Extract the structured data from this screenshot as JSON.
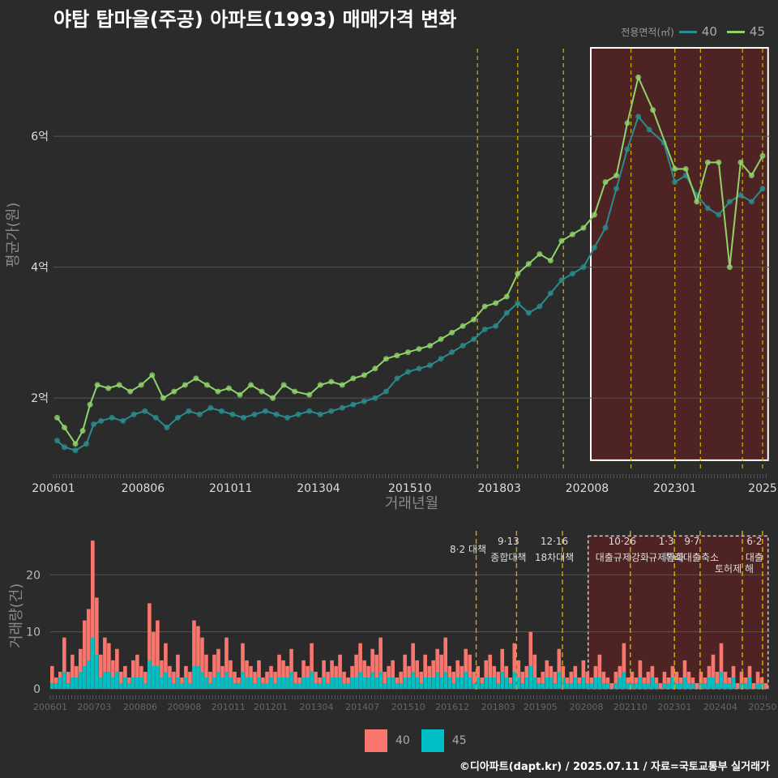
{
  "title": "야탑 탑마을(주공) 아파트(1993) 매매가격 변화",
  "footer": "©디아파트(dapt.kr) / 2025.07.11 / 자료=국토교통부 실거래가",
  "colors": {
    "s40_line": "#2a8c8f",
    "s45_line": "#8ed46a",
    "bar40": "#f8766d",
    "bar45": "#00bfc4",
    "policy": "#d4b400",
    "policy_orange": "#e0a000",
    "highlight": "#5a2222"
  },
  "chart_data": [
    {
      "type": "line",
      "title": "야탑 탑마을(주공) 아파트(1993) 매매가격 변화",
      "xlabel": "거래년월",
      "ylabel": "평균가(원)",
      "legend_title": "전용면적(㎡)",
      "legend_position": "top-right",
      "x_ticks": [
        "200601",
        "200806",
        "201011",
        "201304",
        "201510",
        "201803",
        "202008",
        "202301",
        "2025"
      ],
      "y_ticks": [
        {
          "value": 2,
          "label": "2억"
        },
        {
          "value": 4,
          "label": "4억"
        },
        {
          "value": 6,
          "label": "6억"
        }
      ],
      "ylim": [
        0.9,
        7.4
      ],
      "xlim": [
        2006.0,
        2025.6
      ],
      "highlight_range": [
        2020.7,
        2025.55
      ],
      "policy_lines": [
        2017.6,
        2018.7,
        2019.95,
        2021.8,
        2023.0,
        2023.7,
        2024.85,
        2025.4
      ],
      "series": [
        {
          "name": "40",
          "points": [
            [
              2006.1,
              1.35
            ],
            [
              2006.3,
              1.25
            ],
            [
              2006.6,
              1.2
            ],
            [
              2006.9,
              1.3
            ],
            [
              2007.1,
              1.6
            ],
            [
              2007.3,
              1.65
            ],
            [
              2007.6,
              1.7
            ],
            [
              2007.9,
              1.65
            ],
            [
              2008.2,
              1.75
            ],
            [
              2008.5,
              1.8
            ],
            [
              2008.8,
              1.7
            ],
            [
              2009.1,
              1.55
            ],
            [
              2009.4,
              1.7
            ],
            [
              2009.7,
              1.8
            ],
            [
              2010.0,
              1.75
            ],
            [
              2010.3,
              1.85
            ],
            [
              2010.6,
              1.8
            ],
            [
              2010.9,
              1.75
            ],
            [
              2011.2,
              1.7
            ],
            [
              2011.5,
              1.75
            ],
            [
              2011.8,
              1.8
            ],
            [
              2012.1,
              1.75
            ],
            [
              2012.4,
              1.7
            ],
            [
              2012.7,
              1.75
            ],
            [
              2013.0,
              1.8
            ],
            [
              2013.3,
              1.75
            ],
            [
              2013.6,
              1.8
            ],
            [
              2013.9,
              1.85
            ],
            [
              2014.2,
              1.9
            ],
            [
              2014.5,
              1.95
            ],
            [
              2014.8,
              2.0
            ],
            [
              2015.1,
              2.1
            ],
            [
              2015.4,
              2.3
            ],
            [
              2015.7,
              2.4
            ],
            [
              2016.0,
              2.45
            ],
            [
              2016.3,
              2.5
            ],
            [
              2016.6,
              2.6
            ],
            [
              2016.9,
              2.7
            ],
            [
              2017.2,
              2.8
            ],
            [
              2017.5,
              2.9
            ],
            [
              2017.8,
              3.05
            ],
            [
              2018.1,
              3.1
            ],
            [
              2018.4,
              3.3
            ],
            [
              2018.7,
              3.45
            ],
            [
              2019.0,
              3.3
            ],
            [
              2019.3,
              3.4
            ],
            [
              2019.6,
              3.6
            ],
            [
              2019.9,
              3.8
            ],
            [
              2020.2,
              3.9
            ],
            [
              2020.5,
              4.0
            ],
            [
              2020.8,
              4.3
            ],
            [
              2021.1,
              4.6
            ],
            [
              2021.4,
              5.2
            ],
            [
              2021.7,
              5.8
            ],
            [
              2022.0,
              6.3
            ],
            [
              2022.3,
              6.1
            ],
            [
              2022.7,
              5.9
            ],
            [
              2023.0,
              5.3
            ],
            [
              2023.3,
              5.4
            ],
            [
              2023.6,
              5.1
            ],
            [
              2023.9,
              4.9
            ],
            [
              2024.2,
              4.8
            ],
            [
              2024.5,
              5.0
            ],
            [
              2024.8,
              5.1
            ],
            [
              2025.1,
              5.0
            ],
            [
              2025.4,
              5.2
            ]
          ]
        },
        {
          "name": "45",
          "points": [
            [
              2006.1,
              1.7
            ],
            [
              2006.3,
              1.55
            ],
            [
              2006.6,
              1.3
            ],
            [
              2006.8,
              1.5
            ],
            [
              2007.0,
              1.9
            ],
            [
              2007.2,
              2.2
            ],
            [
              2007.5,
              2.15
            ],
            [
              2007.8,
              2.2
            ],
            [
              2008.1,
              2.1
            ],
            [
              2008.4,
              2.2
            ],
            [
              2008.7,
              2.35
            ],
            [
              2009.0,
              2.0
            ],
            [
              2009.3,
              2.1
            ],
            [
              2009.6,
              2.2
            ],
            [
              2009.9,
              2.3
            ],
            [
              2010.2,
              2.2
            ],
            [
              2010.5,
              2.1
            ],
            [
              2010.8,
              2.15
            ],
            [
              2011.1,
              2.05
            ],
            [
              2011.4,
              2.2
            ],
            [
              2011.7,
              2.1
            ],
            [
              2012.0,
              2.0
            ],
            [
              2012.3,
              2.2
            ],
            [
              2012.6,
              2.1
            ],
            [
              2013.0,
              2.05
            ],
            [
              2013.3,
              2.2
            ],
            [
              2013.6,
              2.25
            ],
            [
              2013.9,
              2.2
            ],
            [
              2014.2,
              2.3
            ],
            [
              2014.5,
              2.35
            ],
            [
              2014.8,
              2.45
            ],
            [
              2015.1,
              2.6
            ],
            [
              2015.4,
              2.65
            ],
            [
              2015.7,
              2.7
            ],
            [
              2016.0,
              2.75
            ],
            [
              2016.3,
              2.8
            ],
            [
              2016.6,
              2.9
            ],
            [
              2016.9,
              3.0
            ],
            [
              2017.2,
              3.1
            ],
            [
              2017.5,
              3.2
            ],
            [
              2017.8,
              3.4
            ],
            [
              2018.1,
              3.45
            ],
            [
              2018.4,
              3.55
            ],
            [
              2018.7,
              3.9
            ],
            [
              2019.0,
              4.05
            ],
            [
              2019.3,
              4.2
            ],
            [
              2019.6,
              4.1
            ],
            [
              2019.9,
              4.4
            ],
            [
              2020.2,
              4.5
            ],
            [
              2020.5,
              4.6
            ],
            [
              2020.8,
              4.8
            ],
            [
              2021.1,
              5.3
            ],
            [
              2021.4,
              5.4
            ],
            [
              2021.7,
              6.2
            ],
            [
              2022.0,
              6.9
            ],
            [
              2022.4,
              6.4
            ],
            [
              2023.0,
              5.5
            ],
            [
              2023.3,
              5.5
            ],
            [
              2023.6,
              5.0
            ],
            [
              2023.9,
              5.6
            ],
            [
              2024.2,
              5.6
            ],
            [
              2024.5,
              4.0
            ],
            [
              2024.8,
              5.6
            ],
            [
              2025.1,
              5.4
            ],
            [
              2025.4,
              5.7
            ]
          ]
        }
      ]
    },
    {
      "type": "bar",
      "ylabel": "거래량(건)",
      "x_ticks": [
        "200601",
        "200703",
        "200806",
        "200908",
        "201011",
        "201201",
        "201304",
        "201407",
        "201510",
        "201612",
        "201803",
        "201905",
        "202008",
        "202110",
        "202301",
        "202404",
        "20250"
      ],
      "y_ticks": [
        0,
        10,
        20
      ],
      "ylim": [
        0,
        27
      ],
      "xlim": [
        2006.0,
        2025.6
      ],
      "highlight_range": [
        2020.65,
        2025.55
      ],
      "legend": [
        "40",
        "45"
      ],
      "stack_40": [
        4,
        2,
        3,
        9,
        3,
        6,
        4,
        7,
        12,
        14,
        26,
        16,
        6,
        9,
        8,
        5,
        7,
        3,
        4,
        2,
        5,
        6,
        4,
        3,
        15,
        10,
        12,
        5,
        8,
        4,
        3,
        6,
        2,
        4,
        3,
        12,
        11,
        9,
        6,
        3,
        6,
        7,
        4,
        9,
        5,
        3,
        2,
        8,
        5,
        4,
        3,
        5,
        2,
        3,
        4,
        3,
        6,
        5,
        4,
        7,
        3,
        2,
        5,
        4,
        8,
        3,
        2,
        5,
        3,
        5,
        4,
        6,
        3,
        2,
        4,
        6,
        8,
        5,
        4,
        7,
        6,
        9,
        3,
        4,
        5,
        2,
        3,
        6,
        4,
        8,
        5,
        3,
        6,
        4,
        5,
        7,
        6,
        9,
        4,
        3,
        5,
        4,
        7,
        6,
        3,
        4,
        2,
        5,
        6,
        4,
        3,
        7,
        4,
        2,
        8,
        5,
        3,
        4,
        10,
        6,
        2,
        3,
        5,
        4,
        3,
        7,
        4,
        2,
        3,
        4,
        2,
        5,
        3,
        2,
        4,
        6,
        3,
        2,
        1,
        3,
        4,
        8,
        2,
        3,
        2,
        5,
        2,
        3,
        4,
        2,
        1,
        3,
        2,
        4,
        3,
        2,
        5,
        3,
        2,
        1,
        3,
        2,
        4,
        6,
        3,
        8,
        3,
        2,
        4,
        1,
        3,
        2,
        4,
        1,
        3,
        2,
        1
      ],
      "stack_45": [
        1,
        1,
        2,
        3,
        1,
        2,
        2,
        3,
        4,
        5,
        9,
        6,
        2,
        3,
        3,
        2,
        3,
        1,
        2,
        1,
        2,
        2,
        2,
        1,
        5,
        4,
        4,
        2,
        3,
        2,
        1,
        2,
        1,
        2,
        1,
        4,
        4,
        3,
        2,
        1,
        2,
        3,
        2,
        3,
        2,
        1,
        1,
        3,
        2,
        2,
        1,
        2,
        1,
        1,
        2,
        1,
        2,
        2,
        2,
        3,
        1,
        1,
        2,
        2,
        3,
        1,
        1,
        2,
        1,
        2,
        2,
        2,
        1,
        1,
        2,
        2,
        3,
        2,
        2,
        3,
        2,
        3,
        1,
        2,
        2,
        1,
        1,
        2,
        2,
        3,
        2,
        1,
        2,
        2,
        2,
        3,
        2,
        3,
        2,
        1,
        2,
        2,
        3,
        2,
        1,
        2,
        1,
        2,
        2,
        2,
        1,
        3,
        2,
        1,
        3,
        2,
        1,
        2,
        4,
        2,
        1,
        1,
        2,
        2,
        1,
        3,
        2,
        1,
        1,
        2,
        1,
        2,
        1,
        1,
        2,
        2,
        1,
        1,
        0,
        1,
        2,
        3,
        1,
        1,
        1,
        2,
        1,
        1,
        2,
        1,
        0,
        1,
        1,
        2,
        1,
        1,
        2,
        1,
        1,
        0,
        1,
        1,
        2,
        2,
        1,
        3,
        1,
        1,
        2,
        0,
        1,
        1,
        2,
        0,
        1,
        1,
        0
      ],
      "annotations": [
        {
          "line": "8·2 대책",
          "x": 2017.6
        },
        {
          "line": "9·13",
          "line2": "종합대책",
          "x": 2018.7
        },
        {
          "line": "12·16",
          "line2": "18차대책",
          "x": 2019.95
        },
        {
          "line": "10·26",
          "line2": "대출규제강화",
          "x": 2021.8
        },
        {
          "line": "1·3",
          "line2": "규제완화",
          "x": 2023.0
        },
        {
          "line": "9·7",
          "line2": "특례대출축소",
          "x": 2023.7
        },
        {
          "line": "토허제 해",
          "x": 2024.85
        },
        {
          "line": "6·2",
          "line2": "대출",
          "x": 2025.4
        }
      ]
    }
  ]
}
